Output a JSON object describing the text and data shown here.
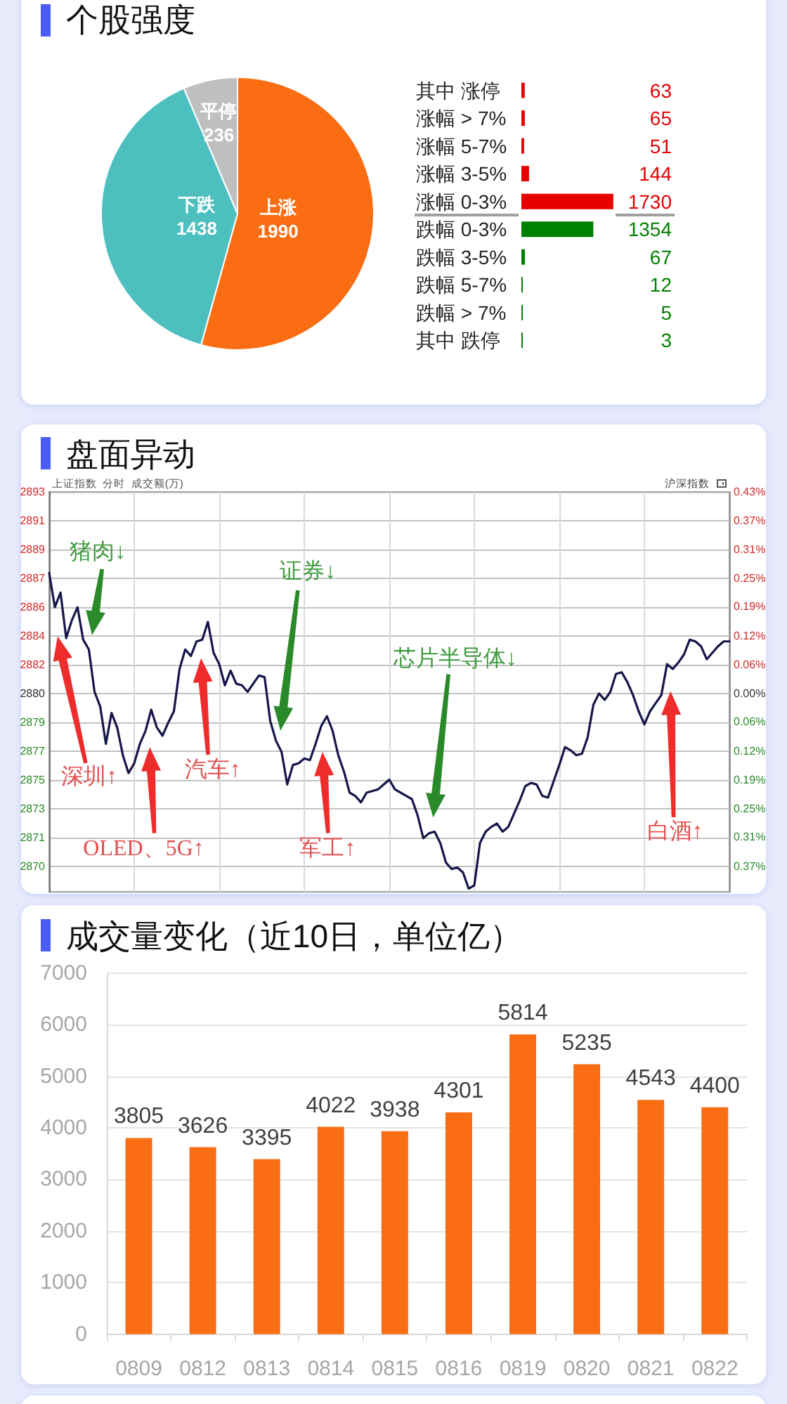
{
  "chart_data": [
    {
      "type": "pie",
      "title": "个股强度",
      "categories": [
        "上涨",
        "下跌",
        "平停"
      ],
      "values": [
        1990,
        1438,
        236
      ],
      "colors": [
        "#fb6d12",
        "#4dbfbf",
        "#bfbfbf"
      ],
      "data_labels": true
    },
    {
      "type": "bar",
      "orientation": "horizontal",
      "categories": [
        "其中 涨停",
        "涨幅 > 7%",
        "涨幅 5-7%",
        "涨幅 3-5%",
        "涨幅 0-3%",
        "跌幅 0-3%",
        "跌幅 3-5%",
        "跌幅 5-7%",
        "跌幅 > 7%",
        "其中 跌停"
      ],
      "values": [
        63,
        65,
        51,
        144,
        1730,
        1354,
        67,
        12,
        5,
        3
      ],
      "colors": [
        "#e60000",
        "#e60000",
        "#e60000",
        "#e60000",
        "#e60000",
        "#008000",
        "#008000",
        "#008000",
        "#008000",
        "#008000"
      ],
      "data_labels": true,
      "tick_labels": "y"
    },
    {
      "type": "line",
      "title": "盘面异动",
      "subtitle": "上证指数  分时  成交额(万)",
      "categories": [
        null,
        null,
        null,
        null,
        null,
        null,
        null,
        null,
        null,
        null,
        null,
        null,
        null,
        null,
        null,
        null,
        null,
        null,
        null,
        null,
        null,
        null,
        null,
        null,
        null,
        null,
        null,
        null,
        null,
        null,
        null,
        null,
        null,
        null,
        null,
        null,
        null,
        null,
        null,
        null,
        null,
        null,
        null,
        null,
        null,
        null,
        null,
        null,
        null,
        null,
        null,
        null,
        null,
        null,
        null,
        null,
        null,
        null,
        null,
        null,
        null,
        null,
        null,
        null,
        null,
        null,
        null,
        null,
        null,
        null,
        null,
        null,
        null,
        null,
        null,
        null,
        null,
        null,
        null,
        null,
        null,
        null,
        null,
        null,
        null,
        null,
        null,
        null,
        null,
        null,
        null,
        null,
        null,
        null,
        null,
        null,
        null,
        null,
        null,
        null,
        null,
        null,
        null,
        null,
        null,
        null,
        null,
        null,
        null,
        null,
        null,
        null,
        null,
        null,
        null,
        null,
        null,
        null,
        null,
        null,
        null
      ],
      "values": [
        2887.7,
        2885.6,
        2886.5,
        2883.7,
        2884.8,
        2885.6,
        2883.6,
        2883.0,
        2880.4,
        2879.5,
        2877.2,
        2879.1,
        2878.2,
        2876.5,
        2875.4,
        2876.0,
        2877.2,
        2878.0,
        2879.3,
        2878.2,
        2877.7,
        2878.5,
        2879.2,
        2881.8,
        2883.0,
        2882.6,
        2883.5,
        2883.6,
        2884.7,
        2882.8,
        2882.1,
        2880.8,
        2881.7,
        2880.9,
        2880.8,
        2880.4,
        2880.9,
        2881.4,
        2881.3,
        2878.6,
        2877.4,
        2876.7,
        2874.7,
        2875.9,
        2876.0,
        2876.3,
        2876.2,
        2877.2,
        2878.3,
        2878.9,
        2878.0,
        2876.5,
        2875.5,
        2874.2,
        2874.0,
        2873.6,
        2874.2,
        2874.3,
        2874.4,
        2874.7,
        2875.0,
        2874.4,
        2874.2,
        2874.0,
        2873.8,
        2872.8,
        2871.4,
        2871.7,
        2871.8,
        2871.1,
        2869.9,
        2869.5,
        2869.6,
        2869.3,
        2868.3,
        2868.5,
        2871.1,
        2871.8,
        2872.1,
        2872.3,
        2871.8,
        2872.1,
        2872.9,
        2873.7,
        2874.6,
        2874.8,
        2874.7,
        2874.0,
        2873.9,
        2874.9,
        2875.9,
        2877.0,
        2876.8,
        2876.5,
        2876.6,
        2877.6,
        2879.6,
        2880.3,
        2879.9,
        2880.4,
        2881.5,
        2881.6,
        2881.0,
        2880.2,
        2879.2,
        2878.4,
        2879.2,
        2879.7,
        2880.2,
        2882.1,
        2881.8,
        2882.2,
        2882.7,
        2883.6,
        2883.5,
        2883.2,
        2882.4,
        2882.8,
        2883.2,
        2883.5,
        2883.5
      ],
      "color": "#16164a",
      "ylim": [
        2868.1,
        2892.69
      ],
      "yticks": [
        {
          "value": 2892.69,
          "label": "2893"
        },
        {
          "value": 2890.92,
          "label": "2891"
        },
        {
          "value": 2889.15,
          "label": "2889"
        },
        {
          "value": 2887.38,
          "label": "2887"
        },
        {
          "value": 2885.61,
          "label": "2886"
        },
        {
          "value": 2883.84,
          "label": "2884"
        },
        {
          "value": 2882.07,
          "label": "2882"
        },
        {
          "value": 2880.3,
          "label": "2880"
        },
        {
          "value": 2878.53,
          "label": "2879"
        },
        {
          "value": 2876.76,
          "label": "2877"
        },
        {
          "value": 2874.99,
          "label": "2875"
        },
        {
          "value": 2873.22,
          "label": "2873"
        },
        {
          "value": 2871.45,
          "label": "2871"
        },
        {
          "value": 2869.68,
          "label": "2870"
        }
      ],
      "y2lim": [
        -0.424,
        0.43
      ],
      "y2ticks": [
        {
          "value": 0.43,
          "label": "0.43%"
        },
        {
          "value": 0.369,
          "label": "0.37%"
        },
        {
          "value": 0.307,
          "label": "0.31%"
        },
        {
          "value": 0.246,
          "label": "0.25%"
        },
        {
          "value": 0.185,
          "label": "0.19%"
        },
        {
          "value": 0.123,
          "label": "0.12%"
        },
        {
          "value": 0.061,
          "label": "0.06%"
        },
        {
          "value": 0,
          "label": "0.00%"
        },
        {
          "value": -0.061,
          "label": "0.06%"
        },
        {
          "value": -0.123,
          "label": "0.12%"
        },
        {
          "value": -0.185,
          "label": "0.19%"
        },
        {
          "value": -0.246,
          "label": "0.25%"
        },
        {
          "value": -0.307,
          "label": "0.31%"
        },
        {
          "value": -0.369,
          "label": "0.37%"
        }
      ],
      "grid": true,
      "tick_labels": "y",
      "annotations": [
        "猪肉↓",
        "深圳↑",
        "OLED、5G↑",
        "汽车↑",
        "证券↓",
        "军工↑",
        "芯片半导体↓",
        "白酒↑",
        "沪深指数"
      ]
    },
    {
      "type": "bar",
      "title": "成交量变化（近10日，单位亿）",
      "categories": [
        "0809",
        "0812",
        "0813",
        "0814",
        "0815",
        "0816",
        "0819",
        "0820",
        "0821",
        "0822"
      ],
      "values": [
        3805,
        3626,
        3395,
        4022,
        3938,
        4301,
        5814,
        5235,
        4543,
        4400
      ],
      "color": "#fb6d12",
      "ylim": [
        0,
        7000
      ],
      "yticks": [
        0,
        1000,
        2000,
        3000,
        4000,
        5000,
        6000,
        7000
      ],
      "grid": "y",
      "data_labels": true
    }
  ]
}
